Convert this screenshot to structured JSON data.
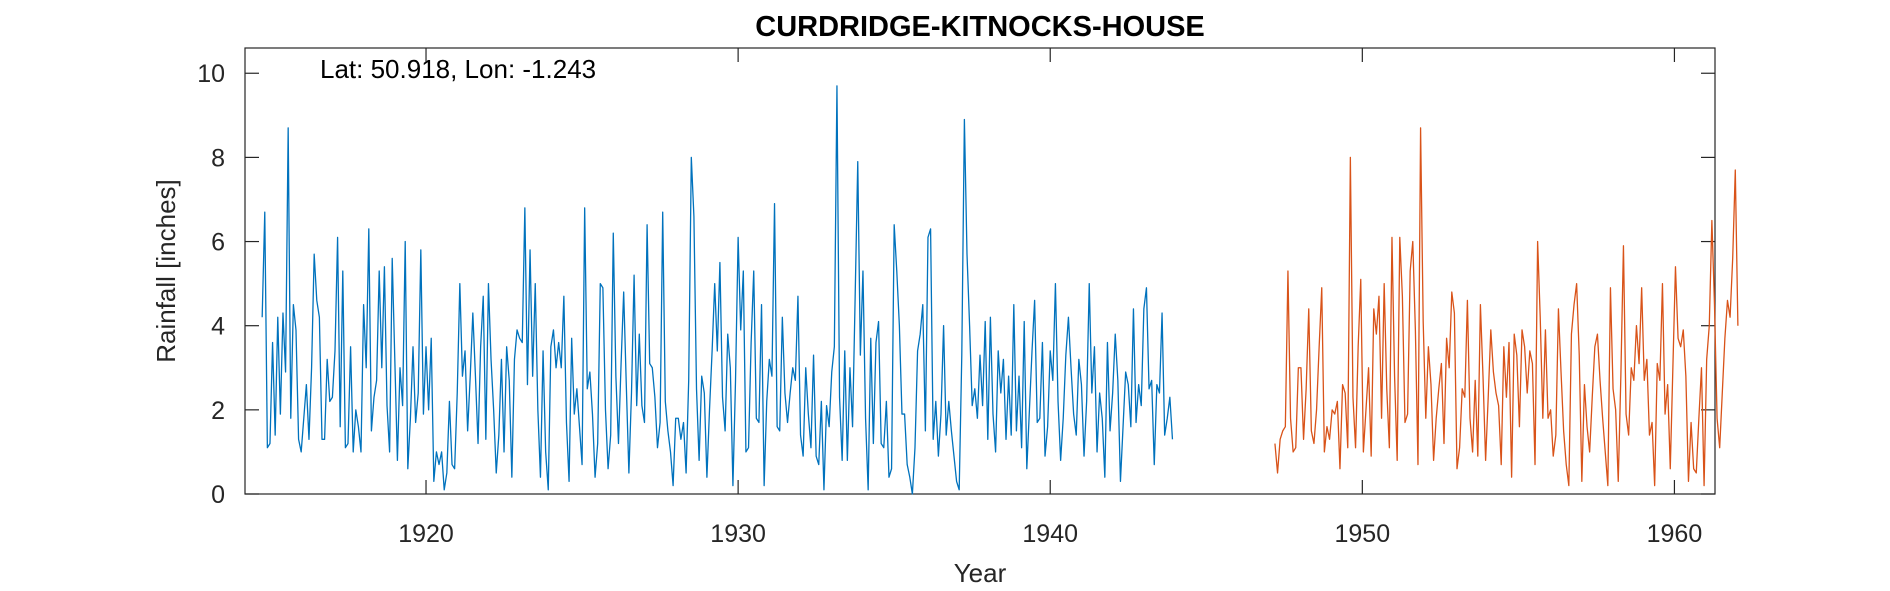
{
  "chart_data": {
    "type": "line",
    "title": "CURDRIDGE-KITNOCKS-HOUSE",
    "xlabel": "Year",
    "ylabel": "Rainfall [inches]",
    "annotation": "Lat: 50.918, Lon: -1.243",
    "xlim": [
      1914.2,
      1961.3
    ],
    "ylim": [
      0,
      10.6
    ],
    "xticks": [
      1920,
      1930,
      1940,
      1950,
      1960
    ],
    "yticks": [
      0,
      2,
      4,
      6,
      8,
      10
    ],
    "grid": false,
    "legend": "none",
    "colors": {
      "series1": "#0072BD",
      "series2": "#D95319",
      "axis": "#262626"
    },
    "series": [
      {
        "x_start": 1914.75,
        "x_step": 0.0833333,
        "values": [
          4.2,
          6.7,
          1.1,
          1.2,
          3.6,
          1.4,
          4.2,
          1.9,
          4.3,
          2.9,
          8.7,
          1.8,
          4.5,
          3.9,
          1.3,
          1.0,
          1.8,
          2.6,
          1.3,
          3.0,
          5.7,
          4.6,
          4.2,
          1.3,
          1.3,
          3.2,
          2.2,
          2.3,
          3.4,
          6.1,
          1.6,
          5.3,
          1.1,
          1.2,
          3.5,
          1.0,
          2.0,
          1.6,
          1.0,
          4.5,
          3.0,
          6.3,
          1.5,
          2.3,
          2.7,
          5.3,
          3.0,
          5.4,
          2.1,
          1.0,
          5.6,
          3.2,
          0.8,
          3.0,
          2.1,
          6.0,
          0.6,
          1.8,
          3.5,
          1.7,
          2.4,
          5.8,
          1.9,
          3.5,
          2.0,
          3.7,
          0.3,
          1.0,
          0.7,
          1.0,
          0.1,
          0.5,
          2.2,
          0.7,
          0.6,
          2.4,
          5.0,
          2.8,
          3.4,
          1.5,
          2.8,
          4.3,
          2.8,
          1.2,
          3.5,
          4.7,
          1.3,
          5.0,
          3.2,
          2.0,
          0.5,
          1.4,
          3.2,
          1.0,
          3.5,
          2.7,
          0.4,
          3.2,
          3.9,
          3.7,
          3.6,
          6.8,
          2.6,
          5.8,
          2.8,
          5.0,
          2.0,
          0.4,
          3.4,
          1.0,
          0.1,
          3.5,
          3.9,
          3.0,
          3.6,
          3.0,
          4.7,
          1.7,
          0.3,
          3.7,
          1.9,
          2.5,
          1.6,
          0.7,
          6.8,
          2.5,
          2.9,
          1.9,
          0.4,
          1.2,
          5.0,
          4.9,
          2.0,
          0.6,
          1.4,
          6.2,
          2.8,
          1.2,
          3.1,
          4.8,
          2.6,
          0.5,
          2.4,
          5.2,
          2.1,
          3.8,
          2.1,
          1.7,
          6.4,
          3.1,
          3.0,
          2.3,
          1.1,
          1.7,
          6.7,
          2.2,
          1.5,
          1.0,
          0.2,
          1.8,
          1.8,
          1.3,
          1.7,
          0.5,
          2.7,
          8.0,
          6.6,
          2.5,
          0.8,
          2.8,
          2.4,
          0.4,
          2.0,
          3.4,
          5.0,
          3.4,
          5.5,
          2.3,
          1.5,
          3.8,
          3.0,
          0.2,
          2.7,
          6.1,
          3.9,
          5.3,
          1.0,
          1.1,
          3.6,
          5.3,
          1.8,
          1.7,
          4.5,
          0.2,
          2.2,
          3.2,
          2.8,
          6.9,
          1.6,
          1.5,
          4.2,
          2.4,
          1.7,
          2.4,
          3.0,
          2.7,
          4.7,
          1.4,
          0.9,
          3.0,
          1.9,
          1.1,
          3.3,
          0.9,
          0.7,
          2.2,
          0.1,
          2.1,
          1.6,
          2.9,
          3.5,
          9.7,
          2.3,
          0.8,
          3.4,
          0.8,
          3.0,
          1.6,
          4.7,
          7.9,
          3.3,
          5.3,
          1.8,
          0.1,
          3.7,
          1.2,
          3.6,
          4.1,
          1.2,
          1.1,
          2.2,
          0.4,
          0.6,
          6.4,
          5.3,
          4.0,
          1.9,
          1.9,
          0.7,
          0.4,
          0.0,
          1.1,
          3.4,
          3.8,
          4.5,
          1.5,
          6.1,
          6.3,
          1.3,
          2.2,
          0.9,
          1.9,
          4.0,
          1.4,
          2.2,
          1.5,
          0.9,
          0.3,
          0.1,
          3.3,
          8.9,
          5.7,
          4.0,
          2.1,
          2.5,
          1.8,
          3.3,
          2.1,
          4.1,
          1.3,
          4.2,
          1.9,
          1.0,
          3.4,
          2.4,
          3.2,
          1.3,
          2.8,
          1.4,
          4.5,
          1.5,
          2.8,
          1.1,
          4.1,
          0.6,
          2.0,
          3.4,
          4.6,
          1.7,
          1.8,
          3.6,
          0.9,
          1.6,
          3.4,
          2.7,
          5.0,
          2.2,
          0.8,
          1.8,
          3.3,
          4.2,
          3.0,
          1.9,
          1.4,
          3.2,
          2.6,
          0.9,
          2.2,
          5.0,
          2.4,
          3.5,
          1.0,
          2.4,
          1.8,
          0.4,
          3.6,
          1.5,
          2.4,
          3.8,
          2.7,
          0.3,
          1.6,
          2.9,
          2.6,
          1.6,
          4.4,
          1.7,
          2.6,
          2.1,
          4.4,
          4.9,
          2.5,
          2.7,
          0.7,
          2.6,
          2.4,
          4.3,
          1.4,
          1.8,
          2.3,
          1.3
        ]
      },
      {
        "x_start": 1947.2,
        "x_step": 0.0833333,
        "values": [
          1.2,
          0.5,
          1.3,
          1.5,
          1.6,
          5.3,
          1.8,
          1.0,
          1.1,
          3.0,
          3.0,
          1.3,
          2.5,
          4.4,
          1.5,
          1.2,
          2.0,
          3.5,
          4.9,
          1.0,
          1.6,
          1.3,
          2.0,
          1.9,
          2.2,
          0.6,
          2.6,
          2.4,
          1.1,
          8.0,
          2.3,
          1.1,
          3.5,
          5.1,
          1.0,
          2.0,
          3.0,
          0.9,
          4.4,
          3.8,
          4.7,
          1.8,
          5.0,
          2.5,
          1.1,
          6.1,
          2.8,
          0.8,
          6.1,
          4.7,
          1.7,
          1.9,
          5.3,
          6.0,
          3.9,
          0.7,
          8.7,
          4.1,
          1.8,
          3.5,
          2.6,
          0.8,
          1.8,
          2.5,
          3.1,
          1.2,
          3.7,
          3.0,
          4.8,
          4.3,
          0.6,
          1.1,
          2.5,
          2.3,
          4.6,
          1.8,
          1.0,
          2.7,
          0.9,
          4.5,
          2.8,
          0.8,
          2.3,
          3.9,
          2.9,
          2.4,
          2.1,
          0.7,
          3.5,
          2.3,
          3.6,
          0.4,
          3.8,
          3.3,
          1.6,
          3.9,
          3.5,
          2.4,
          3.4,
          3.1,
          0.7,
          6.0,
          4.2,
          1.8,
          3.9,
          1.8,
          2.0,
          0.9,
          1.4,
          4.4,
          2.9,
          1.5,
          0.7,
          0.2,
          3.8,
          4.5,
          5.0,
          3.3,
          0.3,
          2.6,
          1.6,
          1.0,
          2.3,
          3.5,
          3.8,
          2.7,
          1.8,
          1.0,
          0.2,
          4.9,
          2.5,
          2.0,
          0.3,
          2.8,
          5.9,
          1.9,
          1.4,
          3.0,
          2.7,
          4.0,
          3.1,
          4.9,
          2.7,
          3.2,
          1.4,
          1.7,
          0.2,
          3.1,
          2.7,
          5.0,
          1.9,
          2.6,
          0.6,
          3.0,
          5.4,
          3.7,
          3.5,
          3.9,
          2.8,
          0.3,
          1.7,
          0.6,
          0.5,
          1.8,
          3.0,
          0.2,
          3.2,
          4.0,
          6.5,
          4.5,
          1.8,
          1.1,
          2.4,
          3.7,
          4.6,
          4.2,
          5.6,
          7.7,
          4.0
        ]
      }
    ]
  }
}
